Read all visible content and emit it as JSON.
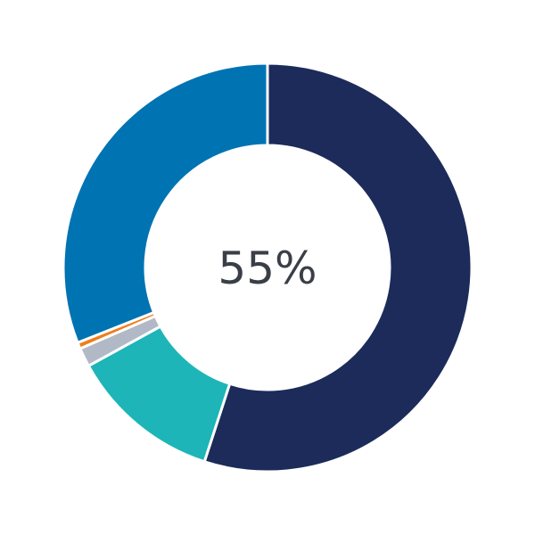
{
  "chart_data": {
    "type": "pie",
    "variant": "donut",
    "center_label": "55%",
    "start_angle_deg": 0,
    "direction": "clockwise",
    "slices": [
      {
        "value": 55,
        "color": "#1c2b5a"
      },
      {
        "value": 12,
        "color": "#1db5b7"
      },
      {
        "value": 1.5,
        "color": "#b1b9c6"
      },
      {
        "value": 0.5,
        "color": "#f07d1a"
      },
      {
        "value": 31,
        "color": "#0073b3"
      }
    ]
  }
}
